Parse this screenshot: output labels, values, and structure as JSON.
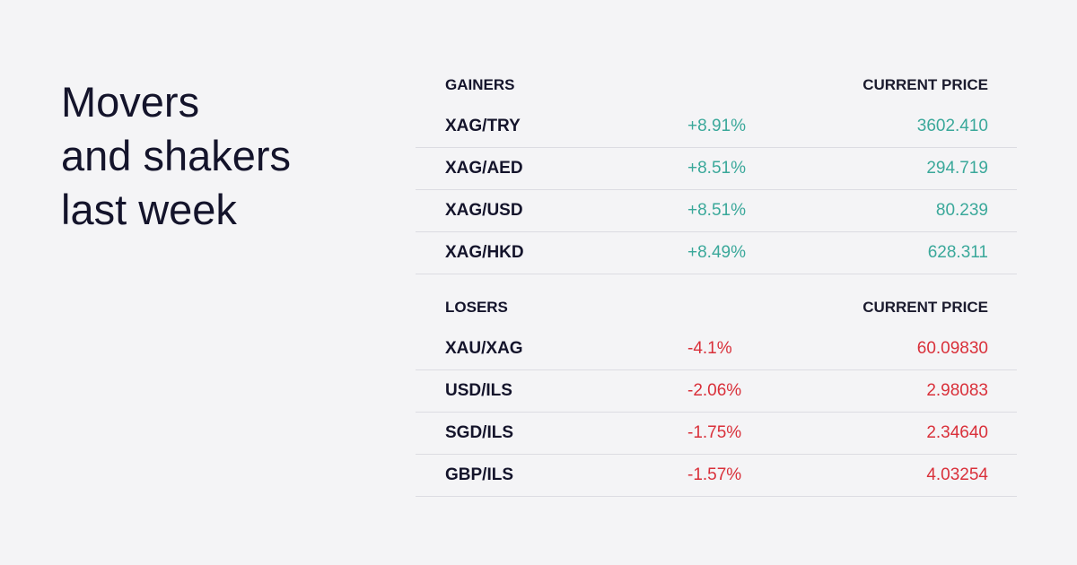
{
  "title": [
    "Movers",
    "and shakers",
    "last week"
  ],
  "sections": [
    {
      "header": [
        "GAINERS",
        "CURRENT PRICE"
      ],
      "rows": [
        [
          "XAG/TRY",
          "+8.91%",
          "3602.410"
        ],
        [
          "XAG/AED",
          "+8.51%",
          "294.719"
        ],
        [
          "XAG/USD",
          "+8.51%",
          "80.239"
        ],
        [
          "XAG/HKD",
          "+8.49%",
          "628.311"
        ]
      ]
    },
    {
      "header": [
        "LOSERS",
        "CURRENT PRICE"
      ],
      "rows": [
        [
          "XAU/XAG",
          "-4.1%",
          "60.09830"
        ],
        [
          "USD/ILS",
          "-2.06%",
          "2.98083"
        ],
        [
          "SGD/ILS",
          "-1.75%",
          "2.34640"
        ],
        [
          "GBP/ILS",
          "-1.57%",
          "4.03254"
        ]
      ]
    }
  ]
}
